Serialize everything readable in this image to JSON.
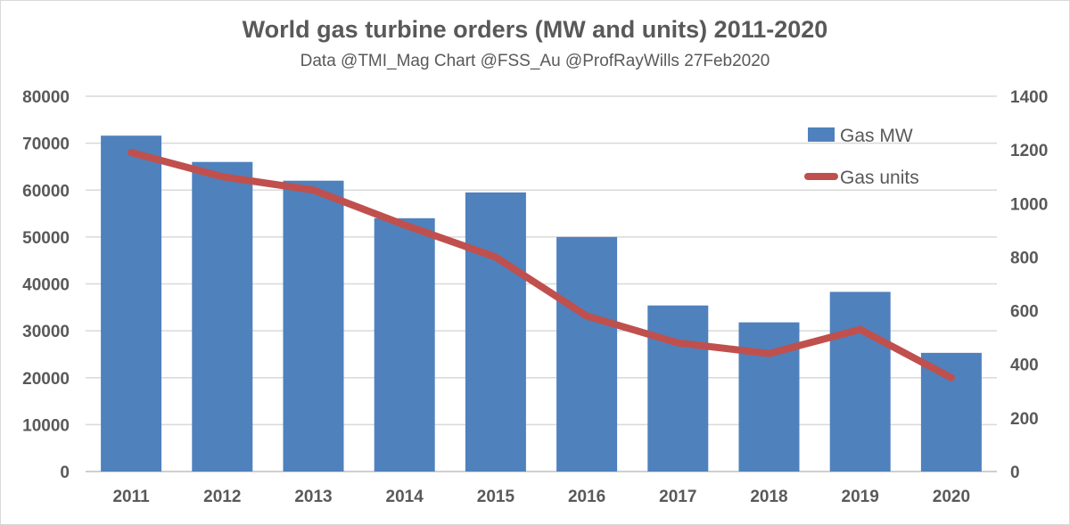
{
  "chart_data": {
    "type": "bar+line",
    "title": "World gas turbine orders (MW and units) 2011-2020",
    "subtitle": "Data @TMI_Mag Chart @FSS_Au @ProfRayWills 27Feb2020",
    "categories": [
      "2011",
      "2012",
      "2013",
      "2014",
      "2015",
      "2016",
      "2017",
      "2018",
      "2019",
      "2020"
    ],
    "series": [
      {
        "name": "Gas MW",
        "type": "bar",
        "axis": "left",
        "color": "#4f81bd",
        "values": [
          71600,
          66000,
          62000,
          54000,
          59500,
          50000,
          35400,
          31800,
          38300,
          25300
        ]
      },
      {
        "name": "Gas units",
        "type": "line",
        "axis": "right",
        "color": "#c0504d",
        "values": [
          1190,
          1100,
          1050,
          920,
          800,
          580,
          480,
          440,
          530,
          350
        ]
      }
    ],
    "y_left": {
      "range": [
        0,
        80000
      ],
      "ticks": [
        "0",
        "10000",
        "20000",
        "30000",
        "40000",
        "50000",
        "60000",
        "70000",
        "80000"
      ]
    },
    "y_right": {
      "range": [
        0,
        1400
      ],
      "ticks": [
        "0",
        "200",
        "400",
        "600",
        "800",
        "1000",
        "1200",
        "1400"
      ]
    },
    "grid": true,
    "legend": "top-right"
  }
}
